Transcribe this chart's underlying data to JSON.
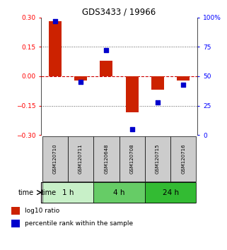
{
  "title": "GDS3433 / 19966",
  "samples": [
    "GSM120710",
    "GSM120711",
    "GSM120648",
    "GSM120708",
    "GSM120715",
    "GSM120716"
  ],
  "log10_ratio": [
    0.28,
    -0.02,
    0.08,
    -0.185,
    -0.07,
    -0.02
  ],
  "percentile_rank": [
    97,
    45,
    72,
    5,
    28,
    43
  ],
  "ylim_left": [
    -0.3,
    0.3
  ],
  "ylim_right": [
    0,
    100
  ],
  "yticks_left": [
    -0.3,
    -0.15,
    0,
    0.15,
    0.3
  ],
  "yticks_right": [
    0,
    25,
    50,
    75,
    100
  ],
  "ytick_labels_right": [
    "0",
    "25",
    "50",
    "75",
    "100%"
  ],
  "time_groups": [
    {
      "label": "1 h",
      "start": 0,
      "end": 2,
      "color": "#c8f0c8"
    },
    {
      "label": "4 h",
      "start": 2,
      "end": 4,
      "color": "#66cc66"
    },
    {
      "label": "24 h",
      "start": 4,
      "end": 6,
      "color": "#33bb33"
    }
  ],
  "bar_color": "#cc2200",
  "square_color": "#0000cc",
  "dashed_zero_color": "#cc0000",
  "dotted_line_color": "#555555",
  "sample_box_color": "#cccccc",
  "bar_width": 0.5,
  "square_size": 18,
  "legend_items": [
    {
      "label": "log10 ratio",
      "color": "#cc2200"
    },
    {
      "label": "percentile rank within the sample",
      "color": "#0000cc"
    }
  ]
}
